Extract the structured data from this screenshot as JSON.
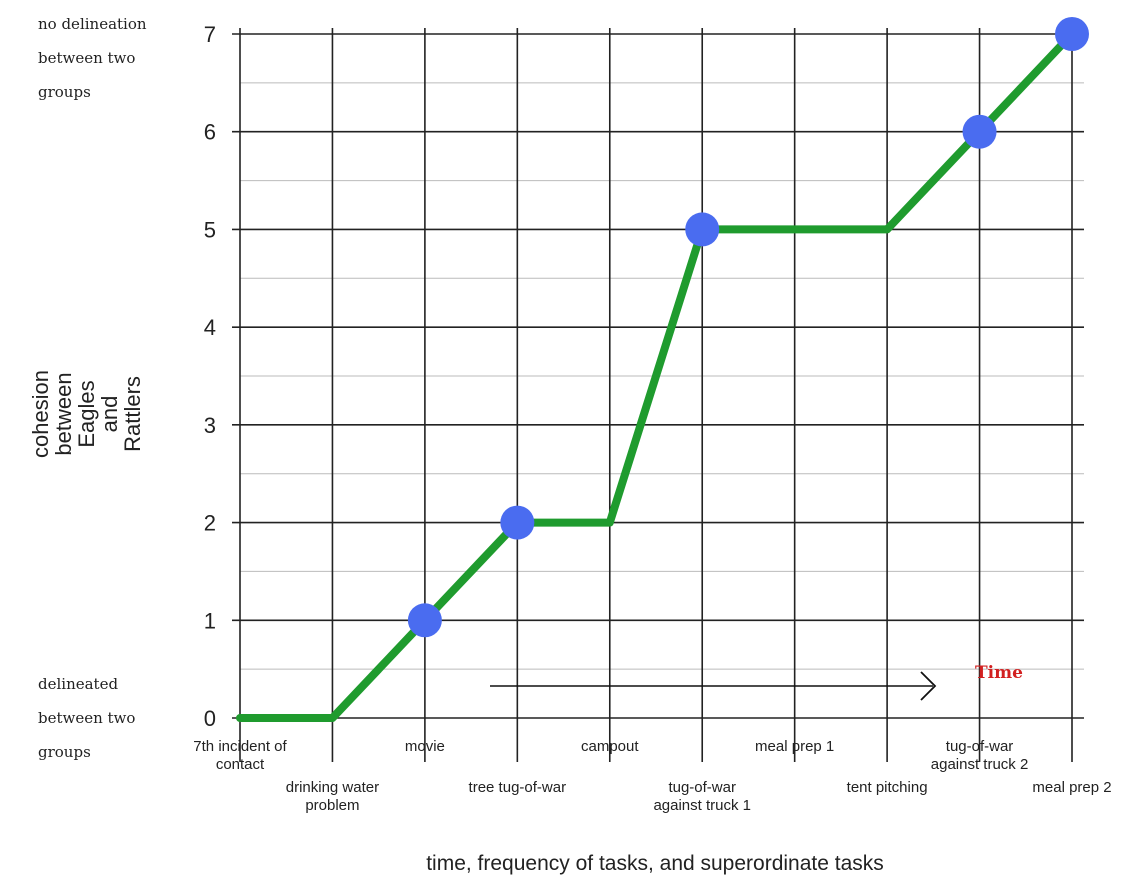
{
  "chart_data": {
    "type": "line",
    "title": "",
    "xlabel": "time, frequency of tasks, and superordinate tasks",
    "ylabel": [
      "cohesion",
      "between",
      "Eagles",
      "and",
      "Rattlers"
    ],
    "categories": [
      "7th incident of contact",
      "drinking water problem",
      "movie",
      "tree tug-of-war",
      "campout",
      "tug-of-war against truck 1",
      "meal prep 1",
      "tent pitching",
      "tug-of-war against truck 2",
      "meal prep 2"
    ],
    "category_lines": [
      [
        "7th incident of",
        "contact"
      ],
      [
        "drinking water",
        "problem"
      ],
      [
        "movie"
      ],
      [
        "tree tug-of-war"
      ],
      [
        "campout"
      ],
      [
        "tug-of-war",
        "against truck 1"
      ],
      [
        "meal prep 1"
      ],
      [
        "tent pitching"
      ],
      [
        "tug-of-war",
        "against truck 2"
      ],
      [
        "meal prep 2"
      ]
    ],
    "values": [
      0,
      0,
      1,
      2,
      2,
      5,
      5,
      5,
      6,
      7
    ],
    "markers": [
      false,
      false,
      true,
      true,
      false,
      true,
      false,
      false,
      true,
      true
    ],
    "ylim": [
      0,
      7
    ],
    "yticks": [
      0,
      1,
      2,
      3,
      4,
      5,
      6,
      7
    ],
    "grid": true,
    "annotations": {
      "top_left": [
        "no delineation",
        "between two",
        "groups"
      ],
      "bottom_left": [
        "delineated",
        "between two",
        "groups"
      ],
      "arrow_label": "Time"
    },
    "colors": {
      "line": "#1f9b2e",
      "marker": "#4a6cf0",
      "grid": "#222222",
      "minor_grid": "#bbbbbb",
      "arrow_label": "#d22020"
    }
  }
}
